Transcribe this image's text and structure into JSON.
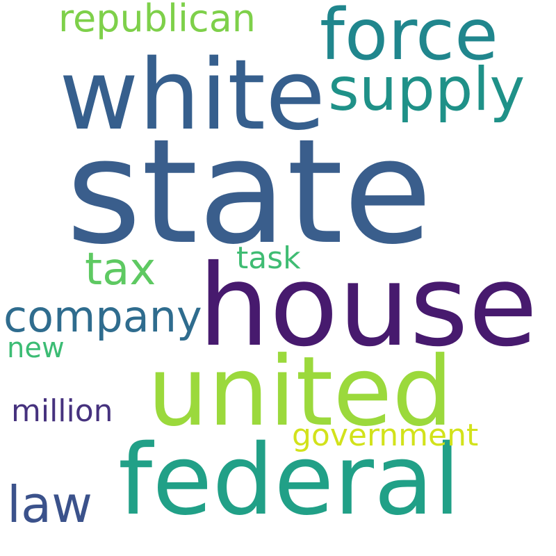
{
  "words": [
    {
      "key": "state",
      "text": "state",
      "color": "#3a5e8c"
    },
    {
      "key": "house",
      "text": "house",
      "color": "#471a6e"
    },
    {
      "key": "white",
      "text": "white",
      "color": "#365f8d"
    },
    {
      "key": "united",
      "text": "united",
      "color": "#9bd93c"
    },
    {
      "key": "federal",
      "text": "federal",
      "color": "#21a087"
    },
    {
      "key": "force",
      "text": "force",
      "color": "#20868d"
    },
    {
      "key": "supply",
      "text": "supply",
      "color": "#1f9188"
    },
    {
      "key": "republican",
      "text": "republican",
      "color": "#7ed04a"
    },
    {
      "key": "company",
      "text": "company",
      "color": "#2f6c8e"
    },
    {
      "key": "tax",
      "text": "tax",
      "color": "#5ec962"
    },
    {
      "key": "task",
      "text": "task",
      "color": "#3fbc73"
    },
    {
      "key": "new",
      "text": "new",
      "color": "#3cbc74"
    },
    {
      "key": "million",
      "text": "million",
      "color": "#46327e"
    },
    {
      "key": "government",
      "text": "government",
      "color": "#d2e21b"
    },
    {
      "key": "law",
      "text": "law",
      "color": "#3b528b"
    }
  ]
}
